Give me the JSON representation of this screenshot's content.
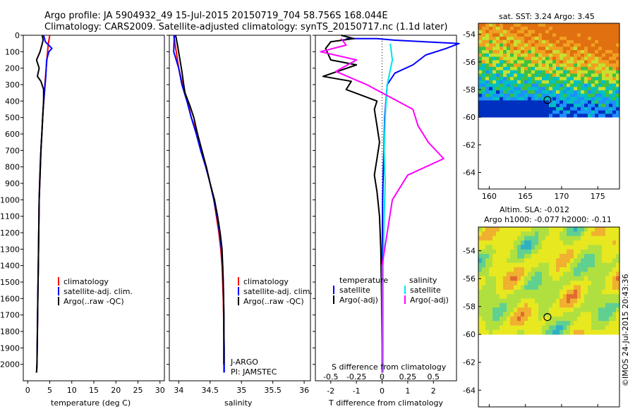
{
  "title": {
    "line1": "Argo profile: JA 5904932_49 15-Jul-2015 20150719_704 58.756S 168.044E",
    "line2": "Climatology: CARS2009. Satellite-adjusted climatology: synTS_20150717.nc (1.1d later)"
  },
  "watermark": "©IMOS 24-Jul-2015 20:43:36",
  "colors": {
    "red": "#ff0000",
    "blue": "#0000ff",
    "black": "#000000",
    "cyan": "#00e5ee",
    "magenta": "#ff00ff"
  },
  "chart_data": [
    {
      "type": "line",
      "xlabel": "temperature (deg C)",
      "ylim": [
        0,
        2100
      ],
      "xlim": [
        -1,
        31
      ],
      "xticks": [
        0,
        5,
        10,
        15,
        20,
        25,
        30
      ],
      "yticks": [
        0,
        100,
        200,
        300,
        400,
        500,
        600,
        700,
        800,
        900,
        1000,
        1100,
        1200,
        1300,
        1400,
        1500,
        1600,
        1700,
        1800,
        1900,
        2000
      ],
      "legend": [
        "climatology",
        "satellite-adj. clim.",
        "Argo(..raw -QC)"
      ],
      "series": [
        {
          "name": "climatology",
          "color": "red",
          "points": [
            [
              5.0,
              0
            ],
            [
              4.7,
              50
            ],
            [
              4.5,
              100
            ],
            [
              4.2,
              200
            ],
            [
              3.9,
              300
            ],
            [
              3.6,
              400
            ],
            [
              3.4,
              500
            ],
            [
              3.2,
              600
            ],
            [
              3.0,
              700
            ],
            [
              2.8,
              850
            ],
            [
              2.6,
              1000
            ],
            [
              2.5,
              1200
            ],
            [
              2.4,
              1400
            ],
            [
              2.3,
              1600
            ],
            [
              2.2,
              1800
            ],
            [
              2.1,
              2000
            ],
            [
              2.0,
              2050
            ]
          ]
        },
        {
          "name": "satellite-adj. clim.",
          "color": "blue",
          "points": [
            [
              3.6,
              0
            ],
            [
              4.0,
              40
            ],
            [
              5.5,
              80
            ],
            [
              4.8,
              100
            ],
            [
              4.3,
              150
            ],
            [
              4.1,
              250
            ],
            [
              3.8,
              350
            ],
            [
              3.5,
              450
            ],
            [
              3.3,
              550
            ],
            [
              3.1,
              650
            ],
            [
              2.9,
              750
            ],
            [
              2.7,
              900
            ],
            [
              2.6,
              1000
            ],
            [
              2.5,
              1200
            ],
            [
              2.4,
              1400
            ],
            [
              2.3,
              1600
            ],
            [
              2.2,
              1800
            ],
            [
              2.1,
              2000
            ],
            [
              2.0,
              2050
            ]
          ]
        },
        {
          "name": "Argo(..raw -QC)",
          "color": "black",
          "points": [
            [
              3.3,
              0
            ],
            [
              3.5,
              30
            ],
            [
              3.2,
              60
            ],
            [
              2.8,
              100
            ],
            [
              2.0,
              150
            ],
            [
              2.6,
              200
            ],
            [
              2.2,
              250
            ],
            [
              3.0,
              280
            ],
            [
              3.6,
              330
            ],
            [
              3.6,
              400
            ],
            [
              3.4,
              500
            ],
            [
              3.2,
              600
            ],
            [
              3.0,
              700
            ],
            [
              2.8,
              850
            ],
            [
              2.6,
              1000
            ],
            [
              2.5,
              1200
            ],
            [
              2.4,
              1400
            ],
            [
              2.3,
              1600
            ],
            [
              2.2,
              1800
            ],
            [
              2.1,
              2000
            ],
            [
              2.0,
              2050
            ]
          ]
        }
      ]
    },
    {
      "type": "line",
      "xlabel": "salinity",
      "ylim": [
        0,
        2100
      ],
      "xlim": [
        33.85,
        36.1
      ],
      "xticks": [
        34,
        34.5,
        35,
        35.5,
        36
      ],
      "legend": [
        "climatology",
        "satellite-adj. clim.",
        "Argo(..raw -QC)"
      ],
      "annotations": [
        "J-ARGO",
        "PI: JAMSTEC"
      ],
      "series": [
        {
          "name": "climatology",
          "color": "red",
          "points": [
            [
              33.92,
              0
            ],
            [
              33.96,
              100
            ],
            [
              34.0,
              200
            ],
            [
              34.06,
              300
            ],
            [
              34.14,
              400
            ],
            [
              34.2,
              500
            ],
            [
              34.3,
              600
            ],
            [
              34.36,
              700
            ],
            [
              34.44,
              800
            ],
            [
              34.5,
              900
            ],
            [
              34.56,
              1000
            ],
            [
              34.6,
              1100
            ],
            [
              34.64,
              1200
            ],
            [
              34.67,
              1300
            ],
            [
              34.69,
              1400
            ],
            [
              34.7,
              1500
            ],
            [
              34.71,
              1600
            ],
            [
              34.715,
              1700
            ],
            [
              34.718,
              1800
            ],
            [
              34.72,
              1900
            ],
            [
              34.72,
              2050
            ]
          ]
        },
        {
          "name": "satellite-adj. clim.",
          "color": "blue",
          "points": [
            [
              33.93,
              0
            ],
            [
              33.92,
              100
            ],
            [
              34.0,
              200
            ],
            [
              34.05,
              300
            ],
            [
              34.13,
              400
            ],
            [
              34.2,
              500
            ],
            [
              34.28,
              600
            ],
            [
              34.35,
              700
            ],
            [
              34.43,
              800
            ],
            [
              34.5,
              900
            ],
            [
              34.56,
              1000
            ],
            [
              34.61,
              1100
            ],
            [
              34.65,
              1200
            ],
            [
              34.68,
              1300
            ],
            [
              34.7,
              1400
            ],
            [
              34.71,
              1500
            ],
            [
              34.715,
              1600
            ],
            [
              34.72,
              1700
            ],
            [
              34.72,
              1800
            ],
            [
              34.725,
              1900
            ],
            [
              34.725,
              2050
            ]
          ]
        },
        {
          "name": "Argo(..raw -QC)",
          "color": "black",
          "points": [
            [
              33.95,
              0
            ],
            [
              33.98,
              60
            ],
            [
              34.02,
              150
            ],
            [
              34.05,
              220
            ],
            [
              34.08,
              300
            ],
            [
              34.1,
              350
            ],
            [
              34.18,
              430
            ],
            [
              34.24,
              500
            ],
            [
              34.3,
              600
            ],
            [
              34.37,
              700
            ],
            [
              34.44,
              800
            ],
            [
              34.5,
              900
            ],
            [
              34.57,
              1000
            ],
            [
              34.62,
              1100
            ],
            [
              34.66,
              1200
            ],
            [
              34.69,
              1300
            ],
            [
              34.7,
              1400
            ],
            [
              34.71,
              1500
            ],
            [
              34.715,
              1600
            ],
            [
              34.72,
              1700
            ],
            [
              34.72,
              1900
            ],
            [
              34.72,
              2000
            ]
          ]
        }
      ]
    },
    {
      "type": "line",
      "title_top": "S difference from climatology",
      "xlabel": "T difference from climatology",
      "ylim": [
        0,
        2100
      ],
      "xlim": [
        -2.6,
        2.9
      ],
      "xticks_T": [
        -2,
        -1,
        0,
        1,
        2
      ],
      "xticks_S": [
        "-0.5",
        "-0.25",
        "0",
        "0.25",
        "0.5"
      ],
      "legend": {
        "temperature_header": "temperature",
        "salinity_header": "salinity",
        "t_satellite": "satellite",
        "t_argo": "Argo(-adj)",
        "s_satellite": "satellite",
        "s_argo": "Argo(-adj)"
      },
      "series": [
        {
          "name": "temperature satellite",
          "color": "blue",
          "points": [
            [
              -1.4,
              20
            ],
            [
              -0.2,
              20
            ],
            [
              0.5,
              30
            ],
            [
              3.0,
              50
            ],
            [
              2.5,
              80
            ],
            [
              1.7,
              120
            ],
            [
              1.2,
              180
            ],
            [
              0.5,
              230
            ],
            [
              0.2,
              300
            ],
            [
              0.1,
              500
            ],
            [
              0.05,
              800
            ],
            [
              0.02,
              1000
            ],
            [
              0.0,
              1500
            ],
            [
              0.0,
              2050
            ]
          ]
        },
        {
          "name": "temperature Argo(-adj)",
          "color": "black",
          "points": [
            [
              -1.6,
              0
            ],
            [
              -1.1,
              20
            ],
            [
              -2.0,
              40
            ],
            [
              -2.2,
              80
            ],
            [
              -2.0,
              150
            ],
            [
              -1.0,
              180
            ],
            [
              -2.3,
              250
            ],
            [
              -1.2,
              280
            ],
            [
              -1.4,
              330
            ],
            [
              -0.2,
              400
            ],
            [
              -0.3,
              450
            ],
            [
              -0.2,
              550
            ],
            [
              -0.1,
              650
            ],
            [
              -0.2,
              750
            ],
            [
              -0.3,
              850
            ],
            [
              -0.2,
              950
            ],
            [
              -0.1,
              1100
            ],
            [
              -0.05,
              1300
            ],
            [
              -0.02,
              1600
            ],
            [
              0.0,
              1900
            ],
            [
              0.0,
              2050
            ]
          ]
        },
        {
          "name": "salinity satellite",
          "color": "cyan",
          "points": [
            [
              0.08,
              50
            ],
            [
              0.1,
              150
            ],
            [
              0.05,
              300
            ],
            [
              0.03,
              500
            ],
            [
              0.02,
              700
            ],
            [
              0.03,
              900
            ],
            [
              0.02,
              1100
            ],
            [
              0.01,
              1400
            ],
            [
              0.01,
              1800
            ],
            [
              0.01,
              2050
            ]
          ]
        },
        {
          "name": "salinity Argo(-adj)",
          "color": "magenta",
          "points": [
            [
              -0.4,
              20
            ],
            [
              -0.35,
              60
            ],
            [
              -0.6,
              100
            ],
            [
              -0.25,
              150
            ],
            [
              -0.45,
              220
            ],
            [
              -0.15,
              300
            ],
            [
              0.3,
              450
            ],
            [
              0.35,
              550
            ],
            [
              0.45,
              650
            ],
            [
              0.6,
              750
            ],
            [
              0.25,
              850
            ],
            [
              0.1,
              1000
            ],
            [
              0.05,
              1200
            ],
            [
              0.0,
              1400
            ],
            [
              0.0,
              1700
            ],
            [
              0.0,
              2050
            ]
          ]
        }
      ]
    },
    {
      "type": "heatmap",
      "title": "sat. SST: 3.24 Argo: 3.45",
      "xlim": [
        158.5,
        178
      ],
      "ylim": [
        -65.2,
        -53.2
      ],
      "xticks": [
        160,
        165,
        170,
        175
      ],
      "yticks": [
        -54,
        -56,
        -58,
        -60,
        -62,
        -64
      ],
      "data_bounds": {
        "lat_min": -60,
        "lat_max": -53.2
      },
      "marker": {
        "lon": 168.044,
        "lat": -58.756
      }
    },
    {
      "type": "heatmap",
      "title_line1": "Altim. SLA: -0.012",
      "title_line2": "Argo h1000: -0.077 h2000: -0.11",
      "xlim": [
        158.5,
        178
      ],
      "ylim": [
        -65.2,
        -52.3
      ],
      "xticks": [
        160,
        165,
        170,
        175
      ],
      "yticks": [
        -54,
        -56,
        -58,
        -60,
        -62,
        -64
      ],
      "data_bounds": {
        "lat_min": -60,
        "lat_max": -52.3
      },
      "marker": {
        "lon": 168.044,
        "lat": -58.756
      }
    }
  ]
}
